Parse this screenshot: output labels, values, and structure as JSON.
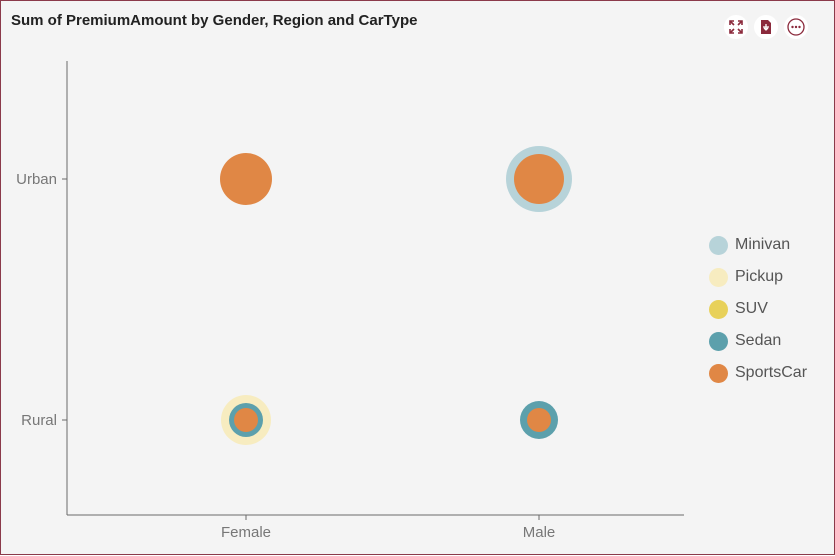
{
  "title": "Sum of PremiumAmount by Gender, Region and CarType",
  "toolbar": [
    "expand-icon",
    "export-pdf-icon",
    "more-options-icon"
  ],
  "chart_data": {
    "type": "bubble",
    "x_categories": [
      "Female",
      "Male"
    ],
    "y_categories": [
      "Rural",
      "Urban"
    ],
    "series": [
      {
        "name": "Minivan",
        "color": "#b7d3d9",
        "points": [
          {
            "x": "Male",
            "y": "Urban",
            "size": 33
          }
        ]
      },
      {
        "name": "Pickup",
        "color": "#f7ecc0",
        "points": [
          {
            "x": "Female",
            "y": "Rural",
            "size": 25
          }
        ]
      },
      {
        "name": "SUV",
        "color": "#e8d15a",
        "points": []
      },
      {
        "name": "Sedan",
        "color": "#5ca0ac",
        "points": [
          {
            "x": "Female",
            "y": "Rural",
            "size": 17
          },
          {
            "x": "Male",
            "y": "Rural",
            "size": 19
          }
        ]
      },
      {
        "name": "SportsCar",
        "color": "#e08745",
        "points": [
          {
            "x": "Female",
            "y": "Urban",
            "size": 26
          },
          {
            "x": "Male",
            "y": "Urban",
            "size": 25
          },
          {
            "x": "Female",
            "y": "Rural",
            "size": 12
          },
          {
            "x": "Male",
            "y": "Rural",
            "size": 12
          }
        ]
      }
    ],
    "legend": "right",
    "grid": false
  }
}
